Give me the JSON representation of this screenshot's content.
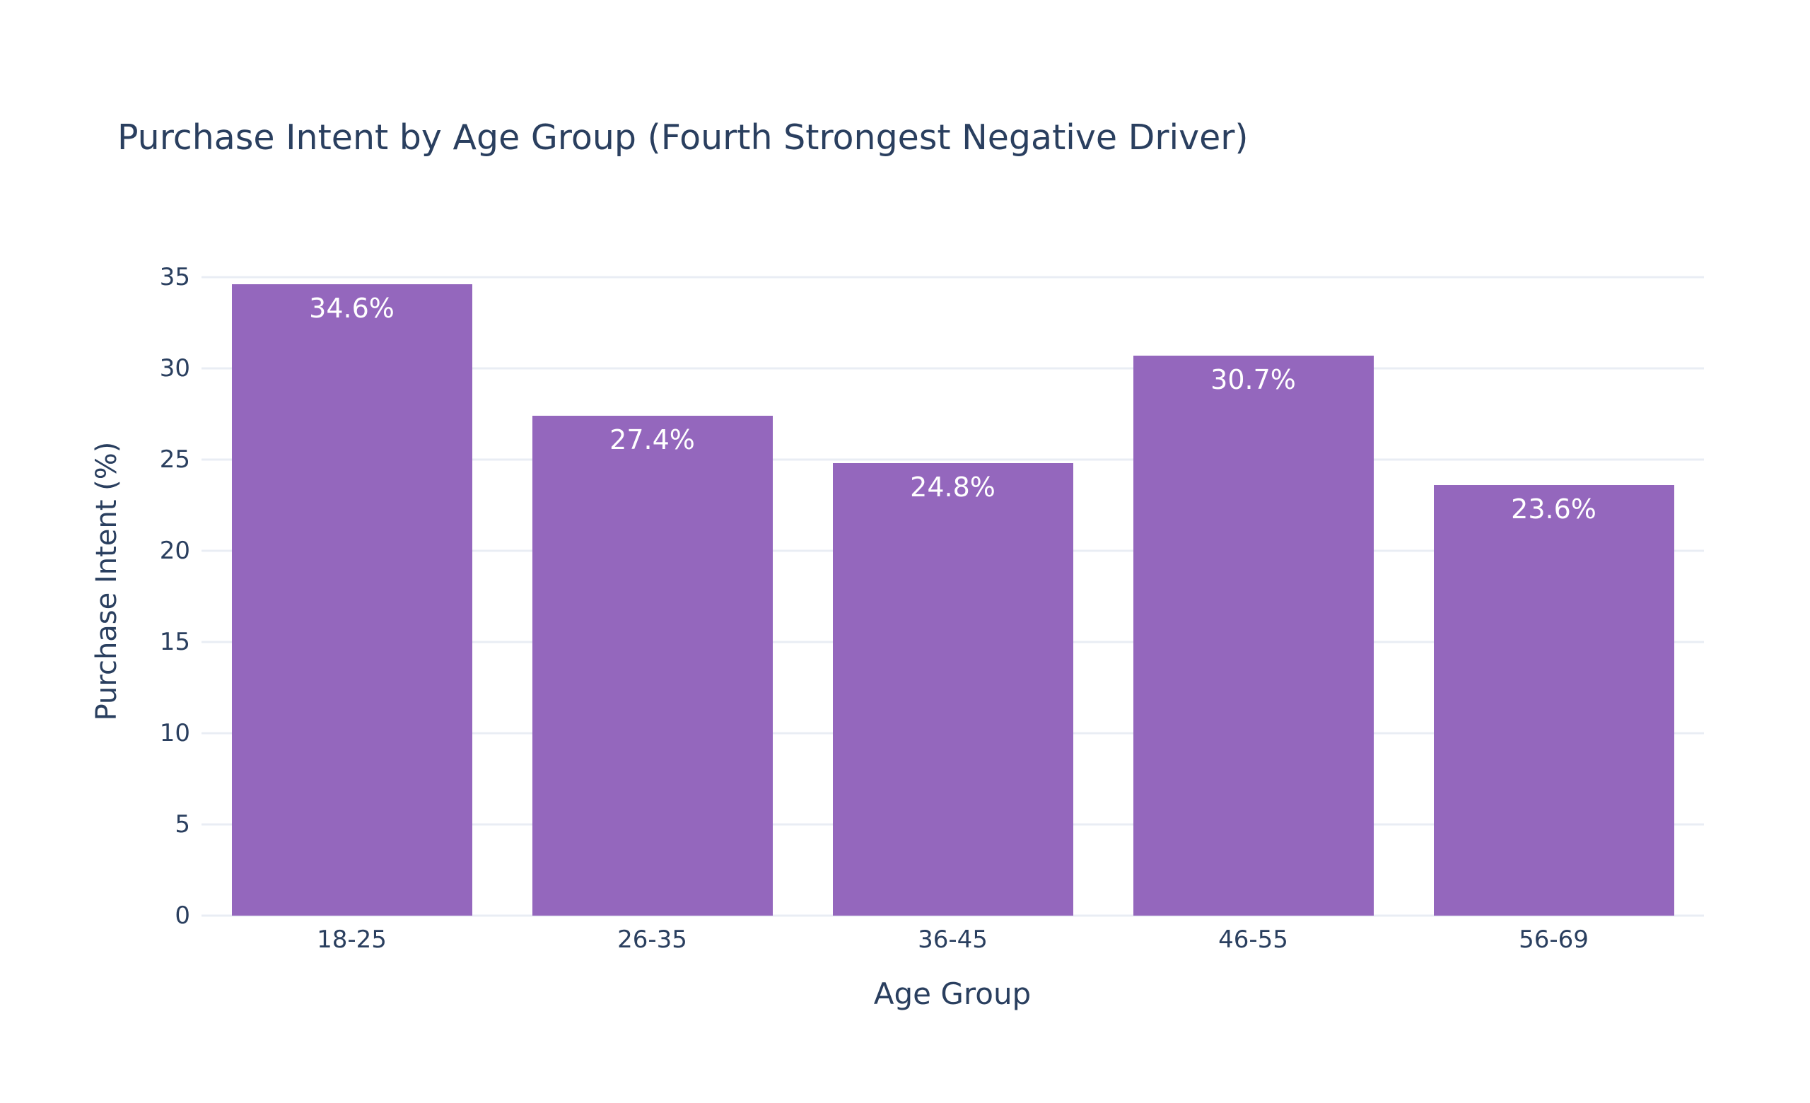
{
  "chart_data": {
    "type": "bar",
    "title": "Purchase Intent by Age Group (Fourth Strongest Negative Driver)",
    "xlabel": "Age Group",
    "ylabel": "Purchase Intent (%)",
    "categories": [
      "18-25",
      "26-35",
      "36-45",
      "46-55",
      "56-69"
    ],
    "values": [
      34.6,
      27.4,
      24.8,
      30.7,
      23.6
    ],
    "bar_labels": [
      "34.6%",
      "27.4%",
      "24.8%",
      "30.7%",
      "23.6%"
    ],
    "ylim": [
      0,
      35
    ],
    "yticks": [
      0,
      5,
      10,
      15,
      20,
      25,
      30,
      35
    ],
    "grid": true,
    "legend": "none",
    "colors": {
      "bar": "#9467bd",
      "bar_label_text": "#ffffff",
      "text": "#2a3f5f",
      "gridline": "#e9edf4",
      "background": "#ffffff"
    }
  }
}
